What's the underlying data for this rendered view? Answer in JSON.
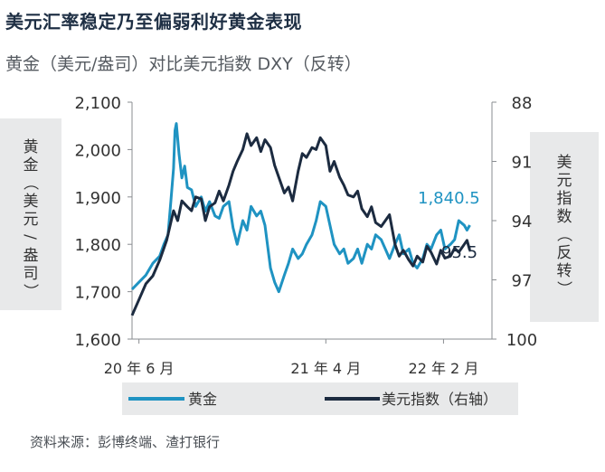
{
  "title": "美元汇率稳定乃至偏弱利好黄金表现",
  "subtitle": "黄金（美元/盎司）对比美元指数 DXY（反转）",
  "source": "资料来源：彭博终端、渣打银行",
  "colors": {
    "gold": "#1f93c2",
    "dxy": "#1c2b40",
    "axis": "#8a8d91",
    "text": "#333333"
  },
  "chart_data": {
    "type": "line",
    "title": "黄金（美元/盎司）对比美元指数 DXY（反转）",
    "x_ticks": [
      "20 年 6 月",
      "21 年 4 月",
      "22 年 2 月"
    ],
    "x_range": [
      0,
      26
    ],
    "x_unit": "months since 2020-05 start",
    "y_left": {
      "label": "黄金（美元/盎司）",
      "ticks": [
        "1,600",
        "1,700",
        "1,800",
        "1,900",
        "2,000",
        "2,100"
      ],
      "range": [
        1600,
        2100
      ]
    },
    "y_right": {
      "label": "美元指数（反转）",
      "ticks": [
        "88",
        "91",
        "94",
        "97",
        "100"
      ],
      "range": [
        88,
        100
      ],
      "inverted": true
    },
    "end_labels": {
      "gold": "1,840.5",
      "dxy": "95.5"
    },
    "series": [
      {
        "name": "黄金",
        "axis": "left",
        "x": [
          0,
          0.5,
          1.0,
          1.5,
          2.0,
          2.3,
          2.6,
          2.8,
          3.0,
          3.1,
          3.2,
          3.4,
          3.6,
          3.8,
          4.0,
          4.3,
          4.6,
          5.0,
          5.3,
          5.6,
          6.0,
          6.3,
          6.6,
          7.0,
          7.3,
          7.6,
          8.0,
          8.3,
          8.6,
          9.0,
          9.3,
          9.6,
          10.0,
          10.3,
          10.6,
          11.0,
          11.3,
          11.6,
          12.0,
          12.3,
          12.6,
          13.0,
          13.3,
          13.6,
          14.0,
          14.3,
          14.6,
          15.0,
          15.3,
          15.6,
          16.0,
          16.3,
          16.6,
          17.0,
          17.3,
          17.6,
          18.0,
          18.3,
          18.6,
          19.0,
          19.3,
          19.6,
          20.0,
          20.3,
          20.6,
          21.0,
          21.3,
          21.6,
          22.0,
          22.3,
          22.6,
          23.0,
          23.3,
          23.6,
          24.0,
          24.2,
          24.4
        ],
        "values": [
          1705,
          1720,
          1735,
          1760,
          1775,
          1800,
          1820,
          1890,
          1960,
          2040,
          2055,
          1990,
          1940,
          1965,
          1920,
          1915,
          1880,
          1900,
          1870,
          1890,
          1860,
          1855,
          1880,
          1890,
          1835,
          1800,
          1850,
          1830,
          1880,
          1860,
          1870,
          1840,
          1750,
          1720,
          1700,
          1735,
          1760,
          1790,
          1770,
          1780,
          1800,
          1820,
          1850,
          1890,
          1880,
          1840,
          1800,
          1780,
          1790,
          1760,
          1770,
          1790,
          1760,
          1800,
          1790,
          1820,
          1810,
          1790,
          1770,
          1800,
          1820,
          1780,
          1790,
          1760,
          1750,
          1770,
          1800,
          1790,
          1820,
          1830,
          1790,
          1800,
          1810,
          1850,
          1840,
          1830,
          1840.5
        ]
      },
      {
        "name": "美元指数（右轴）",
        "axis": "right",
        "x": [
          0,
          0.5,
          1.0,
          1.5,
          2.0,
          2.5,
          3.0,
          3.3,
          3.6,
          4.0,
          4.3,
          4.6,
          5.0,
          5.3,
          5.6,
          6.0,
          6.3,
          6.6,
          7.0,
          7.3,
          7.6,
          8.0,
          8.3,
          8.6,
          9.0,
          9.3,
          9.6,
          10.0,
          10.3,
          10.6,
          11.0,
          11.3,
          11.6,
          12.0,
          12.3,
          12.6,
          13.0,
          13.3,
          13.6,
          14.0,
          14.3,
          14.6,
          15.0,
          15.3,
          15.6,
          16.0,
          16.3,
          16.6,
          17.0,
          17.3,
          17.6,
          18.0,
          18.3,
          18.6,
          19.0,
          19.3,
          19.6,
          20.0,
          20.3,
          20.6,
          21.0,
          21.3,
          21.6,
          22.0,
          22.3,
          22.6,
          23.0,
          23.3,
          23.6,
          24.0,
          24.2,
          24.4
        ],
        "values": [
          98.8,
          98.0,
          97.2,
          96.8,
          96.0,
          95.0,
          93.5,
          94.0,
          93.0,
          93.3,
          93.5,
          92.8,
          92.9,
          94.0,
          93.3,
          93.1,
          92.5,
          93.0,
          92.2,
          91.5,
          91.0,
          90.4,
          89.6,
          90.2,
          89.8,
          90.5,
          89.9,
          90.3,
          91.2,
          91.8,
          92.6,
          92.3,
          93.0,
          91.5,
          90.6,
          90.8,
          90.3,
          90.4,
          89.8,
          90.2,
          91.5,
          91.0,
          91.8,
          92.2,
          92.7,
          92.8,
          92.5,
          93.4,
          93.8,
          93.3,
          94.1,
          94.3,
          94.0,
          93.7,
          95.2,
          95.8,
          95.5,
          96.0,
          96.3,
          95.8,
          96.1,
          95.3,
          95.6,
          96.2,
          95.5,
          95.9,
          95.8,
          95.4,
          95.6,
          95.2,
          95.0,
          95.5
        ]
      }
    ],
    "legend": [
      "黄金",
      "美元指数（右轴）"
    ]
  }
}
